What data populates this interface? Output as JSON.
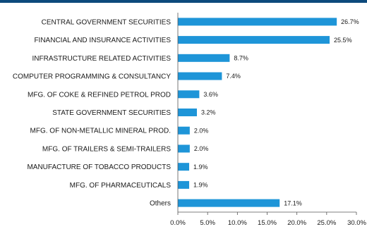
{
  "chart_data": {
    "type": "bar",
    "orientation": "horizontal",
    "categories": [
      "CENTRAL GOVERNMENT SECURITIES",
      "FINANCIAL AND INSURANCE ACTIVITIES",
      "INFRASTRUCTURE RELATED ACTIVITIES",
      "COMPUTER PROGRAMMING & CONSULTANCY",
      "MFG. OF COKE & REFINED PETROL PROD",
      "STATE GOVERNMENT SECURITIES",
      "MFG. OF NON-METALLIC MINERAL PROD.",
      "MFG. OF TRAILERS & SEMI-TRAILERS",
      "MANUFACTURE OF TOBACCO PRODUCTS",
      "MFG. OF PHARMACEUTICALS",
      "Others"
    ],
    "values": [
      26.7,
      25.5,
      8.7,
      7.4,
      3.6,
      3.2,
      2.0,
      2.0,
      1.9,
      1.9,
      17.1
    ],
    "value_labels": [
      "26.7%",
      "25.5%",
      "8.7%",
      "7.4%",
      "3.6%",
      "3.2%",
      "2.0%",
      "2.0%",
      "1.9%",
      "1.9%",
      "17.1%"
    ],
    "x_ticks": [
      "0.0%",
      "5.0%",
      "10.0%",
      "15.0%",
      "20.0%",
      "25.0%",
      "30.0%"
    ],
    "xlim": [
      0,
      30
    ],
    "grid": false,
    "legend": "none",
    "bar_color": "#1e95d8",
    "header_color": "#0d4a7c"
  }
}
